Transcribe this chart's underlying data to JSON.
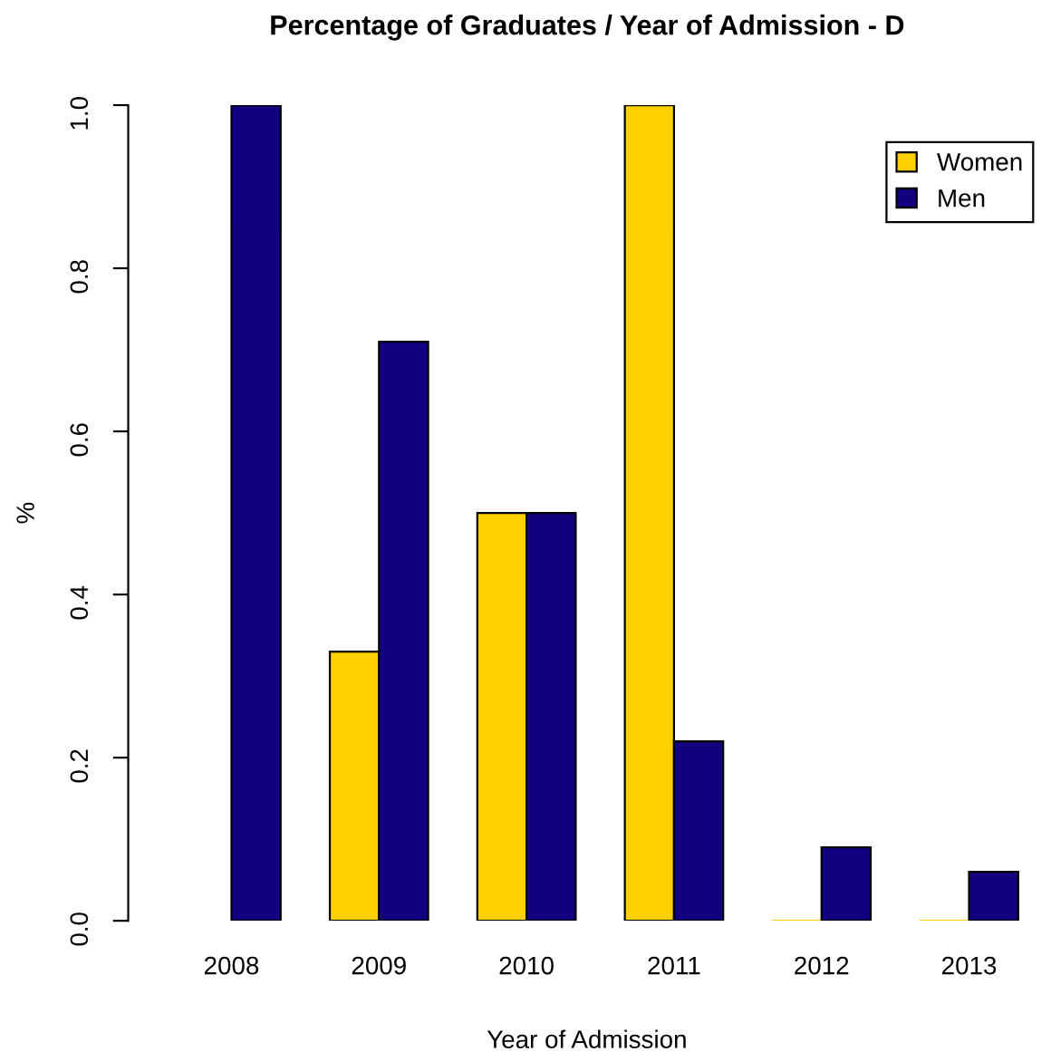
{
  "chart_data": {
    "type": "bar",
    "title": "Percentage of Graduates / Year of Admission - D",
    "xlabel": "Year of Admission",
    "ylabel": "%",
    "categories": [
      "2008",
      "2009",
      "2010",
      "2011",
      "2012",
      "2013"
    ],
    "series": [
      {
        "name": "Women",
        "color": "#ffd000",
        "values": [
          null,
          0.33,
          0.5,
          1.0,
          0,
          0
        ]
      },
      {
        "name": "Men",
        "color": "#110080",
        "values": [
          1.0,
          0.71,
          0.5,
          0.22,
          0.09,
          0.06
        ]
      }
    ],
    "ylim": [
      0,
      1
    ],
    "yticks": [
      {
        "value": 0,
        "label": "0.0"
      },
      {
        "value": 0.2,
        "label": "0.2"
      },
      {
        "value": 0.4,
        "label": "0.4"
      },
      {
        "value": 0.6,
        "label": "0.6"
      },
      {
        "value": 0.8,
        "label": "0.8"
      },
      {
        "value": 1,
        "label": "1.0"
      }
    ],
    "grid": false,
    "legend": "top right"
  }
}
